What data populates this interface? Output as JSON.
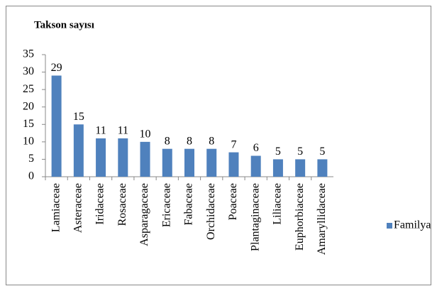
{
  "chart_data": {
    "type": "bar",
    "title": "Takson sayısı",
    "categories": [
      "Lamiaceae",
      "Asteraceae",
      "Iridaceae",
      "Rosaceae",
      "Asparagaceae",
      "Ericaceae",
      "Fabaceae",
      "Orchidaceae",
      "Poaceae",
      "Plantaginaceae",
      "Liliaceae",
      "Euphorbiaceae",
      "Amaryllidaceae"
    ],
    "series": [
      {
        "name": "Familya",
        "color": "#4f81bd",
        "values": [
          29,
          15,
          11,
          11,
          10,
          8,
          8,
          8,
          7,
          6,
          5,
          5,
          5
        ]
      }
    ],
    "ylim": [
      0,
      35
    ],
    "yticks": [
      0,
      5,
      10,
      15,
      20,
      25,
      30,
      35
    ],
    "grid": false,
    "legend": "right"
  }
}
